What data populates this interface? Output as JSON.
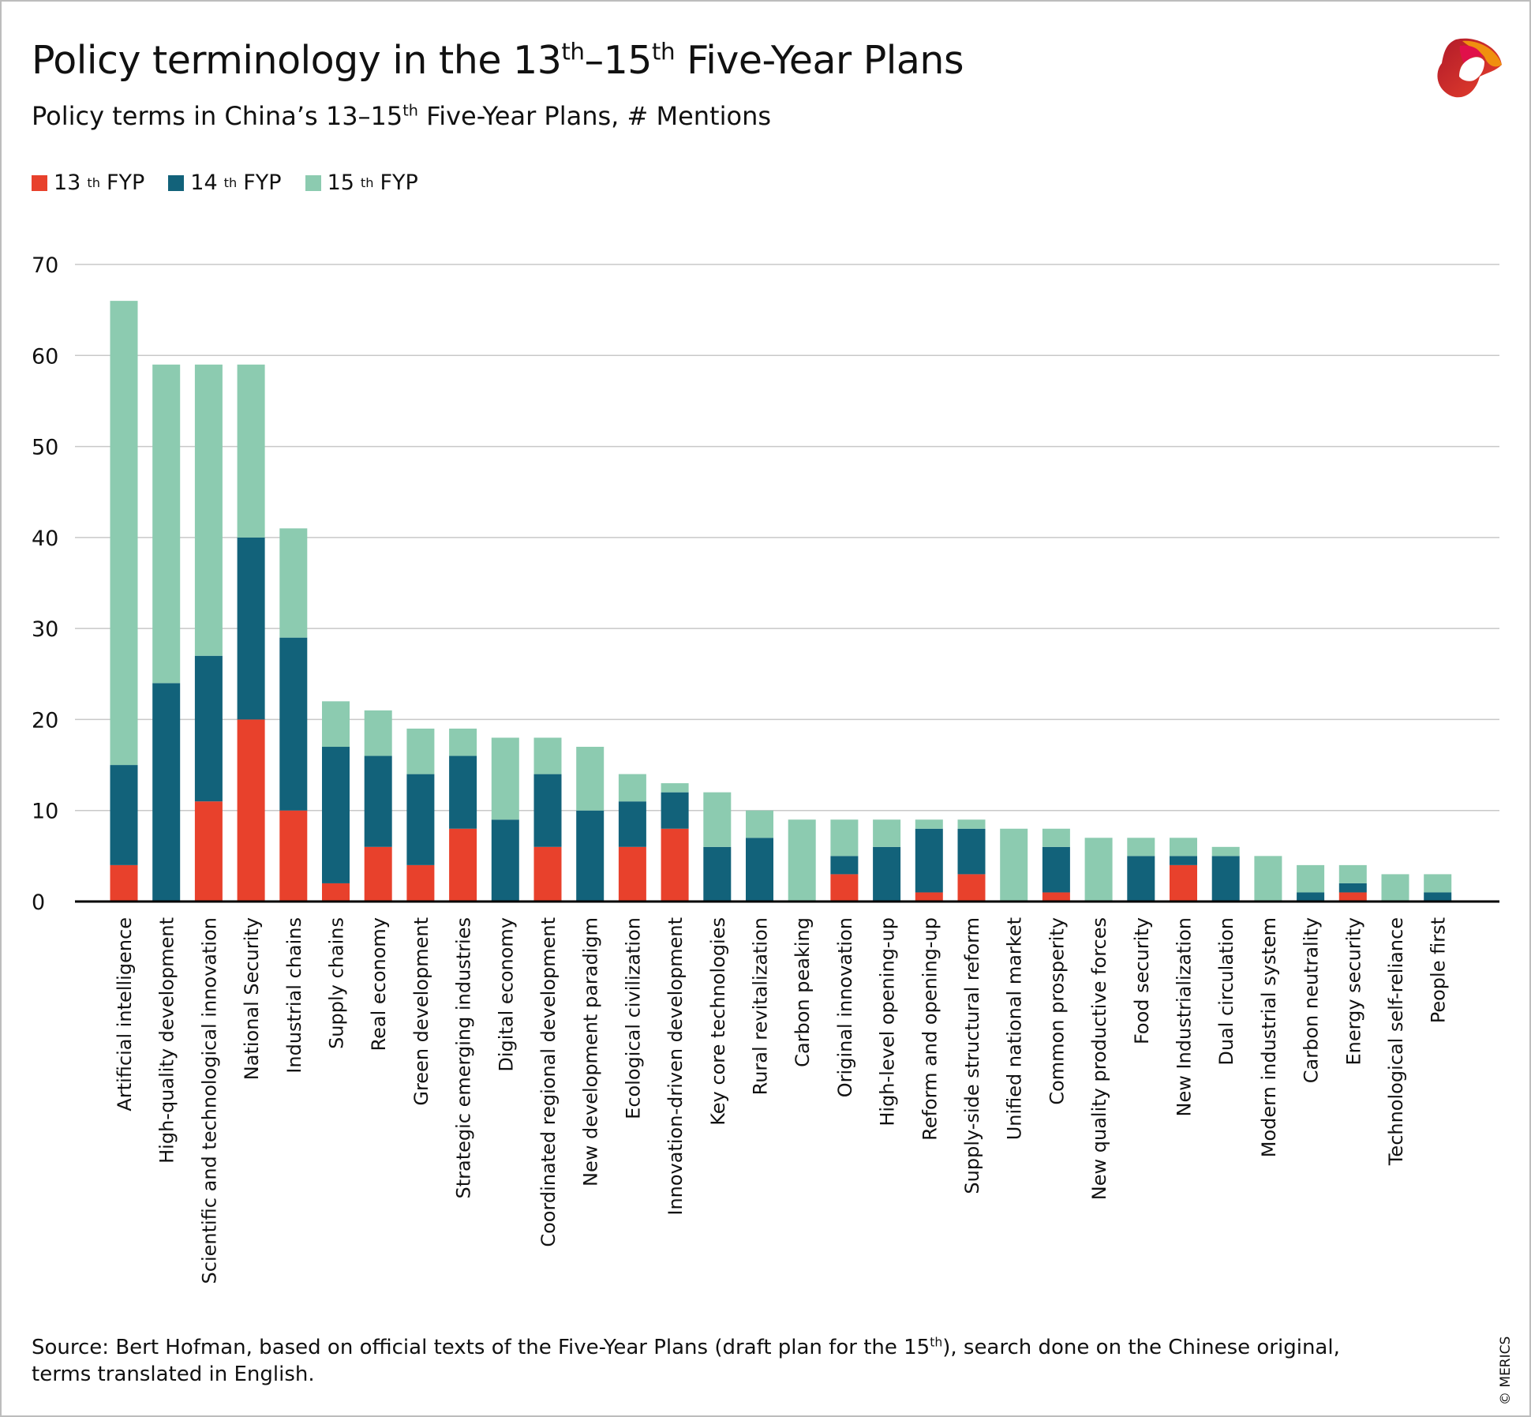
{
  "header": {
    "title_pre": "Policy terminology in the 13",
    "title_sup1": "th",
    "title_mid": "–15",
    "title_sup2": "th",
    "title_post": " Five-Year Plans",
    "subtitle_pre": "Policy terms in China’s 13–15",
    "subtitle_sup": "th",
    "subtitle_post": " Five-Year Plans, # Mentions"
  },
  "legend": [
    {
      "base": "13",
      "sup": "th",
      "rest": " FYP",
      "color": "#e8412c"
    },
    {
      "base": "14",
      "sup": "th",
      "rest": " FYP",
      "color": "#12627a"
    },
    {
      "base": "15",
      "sup": "th",
      "rest": " FYP",
      "color": "#8ccbb0"
    }
  ],
  "footer": {
    "source_pre": "Source: Bert Hofman, based on official texts of the Five-Year Plans (draft plan for the 15",
    "source_sup": "th",
    "source_post": "), search done on the Chinese original, terms translated in English.",
    "copyright": "© MERICS"
  },
  "logo": {
    "name": "merics-logo",
    "text": "MERICS"
  },
  "chart_data": {
    "type": "bar",
    "stacked": true,
    "ylim": [
      0,
      70
    ],
    "yticks": [
      0,
      10,
      20,
      30,
      40,
      50,
      60,
      70
    ],
    "grid": true,
    "legend_placement": "top-left",
    "categories": [
      "Artificial intelligence",
      "High-quality development",
      "Scientific and technological innovation",
      "National Security",
      "Industrial chains",
      "Supply chains",
      "Real economy",
      "Green development",
      "Strategic emerging industries",
      "Digital economy",
      "Coordinated regional development",
      "New development paradigm",
      "Ecological civilization",
      "Innovation-driven development",
      "Key core technologies",
      "Rural revitalization",
      "Carbon peaking",
      "Original innovation",
      "High-level opening-up",
      "Reform and opening-up",
      "Supply-side structural reform",
      "Unified national market",
      "Common prosperity",
      "New quality productive forces",
      "Food security",
      "New Industrialization",
      "Dual circulation",
      "Modern industrial system",
      "Carbon neutrality",
      "Energy security",
      "Technological self-reliance",
      "People first"
    ],
    "series": [
      {
        "name": "13th FYP",
        "color": "#e8412c",
        "values": [
          4,
          0,
          11,
          20,
          10,
          2,
          6,
          4,
          8,
          0,
          6,
          0,
          6,
          8,
          0,
          0,
          0,
          3,
          0,
          1,
          3,
          0,
          1,
          0,
          0,
          4,
          0,
          0,
          0,
          1,
          0,
          0
        ]
      },
      {
        "name": "14th FYP",
        "color": "#12627a",
        "values": [
          11,
          24,
          16,
          20,
          19,
          15,
          10,
          10,
          8,
          9,
          8,
          10,
          5,
          4,
          6,
          7,
          0,
          2,
          6,
          7,
          5,
          0,
          5,
          0,
          5,
          1,
          5,
          0,
          1,
          1,
          0,
          1
        ]
      },
      {
        "name": "15th FYP",
        "color": "#8ccbb0",
        "values": [
          51,
          35,
          32,
          19,
          12,
          5,
          5,
          5,
          3,
          9,
          4,
          7,
          3,
          1,
          6,
          3,
          9,
          4,
          3,
          1,
          1,
          8,
          2,
          7,
          2,
          2,
          1,
          5,
          3,
          2,
          3,
          2
        ]
      }
    ]
  }
}
